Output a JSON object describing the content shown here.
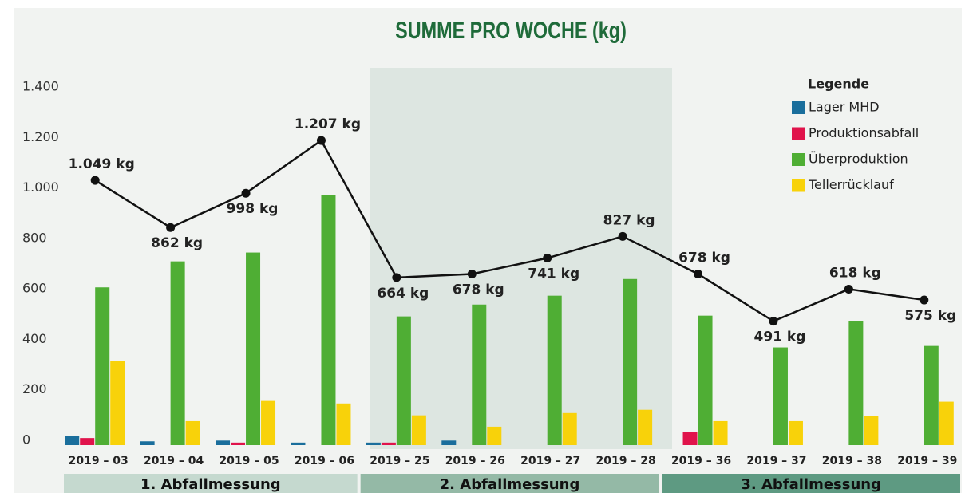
{
  "chart_data": {
    "type": "bar_line",
    "title": "SUMME PRO WOCHE (kg)",
    "legend_title": "Legende",
    "categories": [
      "2019 – 03",
      "2019 – 04",
      "2019 – 05",
      "2019 – 06",
      "2019 – 25",
      "2019 – 26",
      "2019 – 27",
      "2019 – 28",
      "2019 – 36",
      "2019 – 37",
      "2019 – 38",
      "2019 – 39"
    ],
    "groups": [
      "1. Abfallmessung",
      "2. Abfallmessung",
      "3. Abfallmessung"
    ],
    "series": [
      {
        "name": "Lager MHD",
        "color": "#1a6e9c",
        "values": [
          35,
          15,
          18,
          10,
          10,
          18,
          0,
          0,
          0,
          0,
          0,
          0
        ]
      },
      {
        "name": "Produktionsabfall",
        "color": "#e0134b",
        "values": [
          28,
          0,
          10,
          0,
          10,
          0,
          0,
          0,
          52,
          0,
          0,
          0
        ]
      },
      {
        "name": "Überproduktion",
        "color": "#4fae34",
        "values": [
          625,
          728,
          763,
          990,
          510,
          557,
          592,
          658,
          513,
          387,
          490,
          393
        ]
      },
      {
        "name": "Tellerrücklauf",
        "color": "#f8d20a",
        "values": [
          333,
          95,
          175,
          165,
          118,
          73,
          127,
          140,
          95,
          95,
          115,
          172
        ]
      }
    ],
    "total": {
      "color": "#111111",
      "values": [
        1049,
        862,
        998,
        1207,
        664,
        678,
        741,
        827,
        678,
        491,
        618,
        575
      ],
      "value_labels": [
        "1.049 kg",
        "862 kg",
        "998 kg",
        "1.207 kg",
        "664 kg",
        "678 kg",
        "741 kg",
        "827 kg",
        "678 kg",
        "491 kg",
        "618 kg",
        "575 kg"
      ]
    },
    "ylim": [
      0,
      1400
    ],
    "yticks": [
      0,
      200,
      400,
      600,
      800,
      {
        "value": 1000,
        "label": "1.000"
      },
      {
        "value": 1200,
        "label": "1.200"
      },
      {
        "value": 1400,
        "label": "1.400"
      }
    ]
  }
}
